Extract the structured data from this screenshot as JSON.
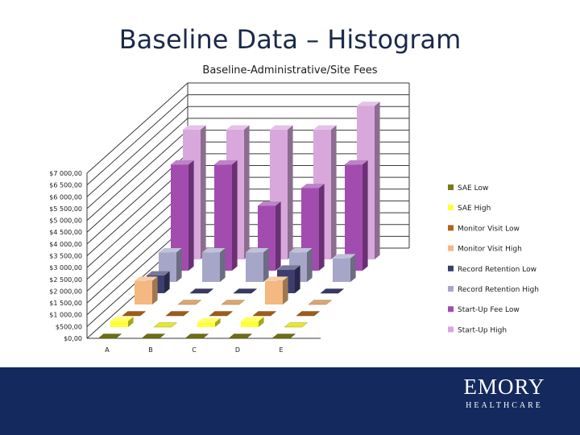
{
  "slide": {
    "title": "Baseline Data – Histogram"
  },
  "footer": {
    "logo_main": "EMORY",
    "logo_sub": "HEALTHCARE",
    "band_color": "#14295e"
  },
  "chart_data": {
    "type": "bar",
    "variant": "3d-clustered-depth",
    "title": "Baseline-Administrative/Site Fees",
    "xlabel": "",
    "ylabel": "",
    "categories": [
      "A",
      "B",
      "C",
      "D",
      "E"
    ],
    "ylim": [
      0,
      7000
    ],
    "yticks": [
      0,
      500,
      1000,
      1500,
      2000,
      2500,
      3000,
      3500,
      4000,
      4500,
      5000,
      5500,
      6000,
      6500,
      7000
    ],
    "ytick_labels": [
      "$0,00",
      "$500,00",
      "$1 000,00",
      "$1 500,00",
      "$2 000,00",
      "$2 500,00",
      "$3 000,00",
      "$3 500,00",
      "$4 000,00",
      "$4 500,00",
      "$5 000,00",
      "$5 500,00",
      "$6 000,00",
      "$6 500,00",
      "$7 000,00"
    ],
    "grid": true,
    "legend_position": "right",
    "series": [
      {
        "name": "SAE Low",
        "color": "#7a7a1a",
        "values": [
          0,
          0,
          0,
          0,
          0
        ]
      },
      {
        "name": "SAE High",
        "color": "#ffff33",
        "values": [
          250,
          0,
          200,
          250,
          0
        ]
      },
      {
        "name": "Monitor Visit Low",
        "color": "#b0651c",
        "values": [
          0,
          0,
          0,
          0,
          0
        ]
      },
      {
        "name": "Monitor Visit High",
        "color": "#f4b880",
        "values": [
          1000,
          0,
          0,
          1000,
          0
        ]
      },
      {
        "name": "Record Retention Low",
        "color": "#3e3e6e",
        "values": [
          750,
          0,
          0,
          1000,
          0
        ]
      },
      {
        "name": "Record Retention High",
        "color": "#a6a6c8",
        "values": [
          1250,
          1250,
          1250,
          1250,
          1000
        ]
      },
      {
        "name": "Start-Up Fee Low",
        "color": "#a24cb0",
        "values": [
          4500,
          4500,
          2750,
          3500,
          4500
        ]
      },
      {
        "name": "Start-Up High",
        "color": "#d8a8dc",
        "values": [
          5500,
          5500,
          5500,
          5500,
          6500
        ]
      }
    ]
  }
}
